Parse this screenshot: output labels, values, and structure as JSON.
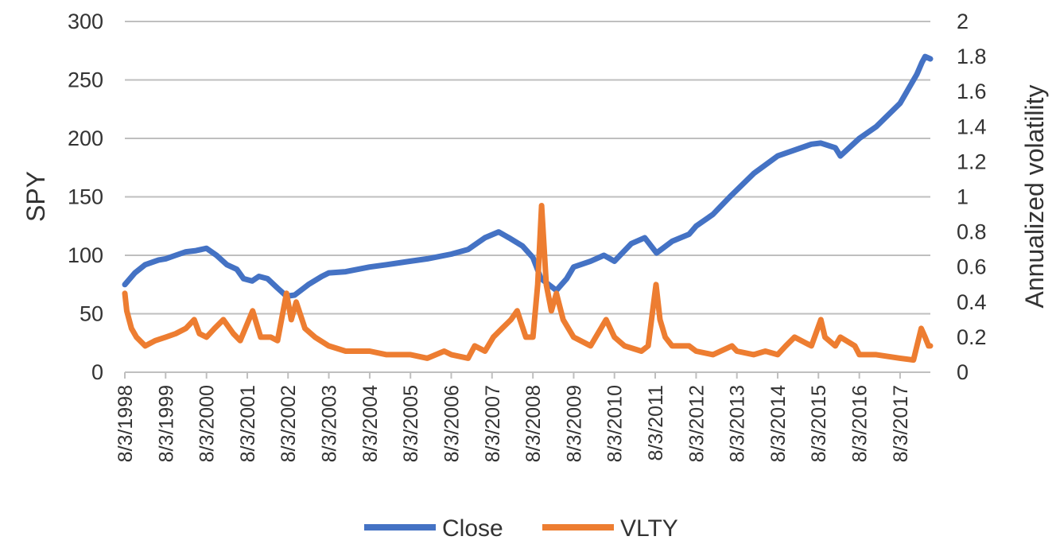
{
  "chart_data": {
    "type": "line",
    "title": "",
    "xlabel": "",
    "ylabel": "SPY",
    "y2label": "Annualized volatility",
    "ylim": [
      0,
      300
    ],
    "y2lim": [
      0,
      2
    ],
    "yticks": [
      "0",
      "50",
      "100",
      "150",
      "200",
      "250",
      "300"
    ],
    "y2ticks": [
      "0",
      "0.2",
      "0.4",
      "0.6",
      "0.8",
      "1",
      "1.2",
      "1.4",
      "1.6",
      "1.8",
      "2"
    ],
    "xlim": [
      "8/3/1998",
      "5/1/2018"
    ],
    "xticks": [
      "8/3/1998",
      "8/3/1999",
      "8/3/2000",
      "8/3/2001",
      "8/3/2002",
      "8/3/2003",
      "8/3/2004",
      "8/3/2005",
      "8/3/2006",
      "8/3/2007",
      "8/3/2008",
      "8/3/2009",
      "8/3/2010",
      "8/3/2011",
      "8/3/2012",
      "8/3/2013",
      "8/3/2014",
      "8/3/2015",
      "8/3/2016",
      "8/3/2017"
    ],
    "grid": true,
    "legend": "bottom",
    "colors": {
      "Close": "#4472C4",
      "VLTY": "#ED7D31",
      "grid": "#bfbfbf"
    },
    "series": [
      {
        "name": "Close",
        "axis": "left",
        "x": [
          "8/3/1998",
          "11/1/1998",
          "2/1/1999",
          "6/1/1999",
          "8/3/1999",
          "11/1/1999",
          "2/1/2000",
          "5/1/2000",
          "8/3/2000",
          "11/1/2000",
          "2/1/2001",
          "5/1/2001",
          "7/1/2001",
          "9/15/2001",
          "11/15/2001",
          "2/1/2002",
          "5/1/2002",
          "7/20/2002",
          "10/1/2002",
          "2/1/2003",
          "6/1/2003",
          "8/3/2003",
          "1/1/2004",
          "8/3/2004",
          "1/1/2005",
          "8/3/2005",
          "1/1/2006",
          "8/3/2006",
          "1/1/2007",
          "6/1/2007",
          "10/1/2007",
          "1/1/2008",
          "5/1/2008",
          "8/3/2008",
          "10/15/2008",
          "3/1/2009",
          "6/1/2009",
          "8/3/2009",
          "1/1/2010",
          "5/1/2010",
          "8/3/2010",
          "1/1/2011",
          "5/1/2011",
          "8/15/2011",
          "1/1/2012",
          "6/1/2012",
          "8/3/2012",
          "1/1/2013",
          "6/1/2013",
          "1/1/2014",
          "8/3/2014",
          "1/1/2015",
          "6/1/2015",
          "8/25/2015",
          "1/1/2016",
          "2/15/2016",
          "8/3/2016",
          "1/1/2017",
          "8/3/2017",
          "1/1/2018",
          "2/15/2018",
          "3/15/2018",
          "5/1/2018"
        ],
        "values": [
          75,
          85,
          92,
          96,
          97,
          100,
          103,
          104,
          106,
          100,
          92,
          88,
          80,
          78,
          82,
          80,
          72,
          65,
          66,
          75,
          82,
          85,
          86,
          90,
          92,
          95,
          97,
          101,
          105,
          115,
          120,
          115,
          108,
          98,
          80,
          70,
          80,
          90,
          95,
          100,
          95,
          110,
          115,
          102,
          112,
          118,
          125,
          135,
          150,
          170,
          185,
          190,
          195,
          196,
          192,
          185,
          200,
          210,
          230,
          255,
          265,
          270,
          268
        ]
      },
      {
        "name": "VLTY",
        "axis": "right",
        "x": [
          "8/3/1998",
          "8/20/1998",
          "10/1/1998",
          "11/15/1998",
          "2/1/1999",
          "5/1/1999",
          "8/3/1999",
          "11/1/1999",
          "2/1/2000",
          "4/15/2000",
          "6/1/2000",
          "8/3/2000",
          "10/15/2000",
          "1/1/2001",
          "4/1/2001",
          "6/1/2001",
          "9/20/2001",
          "12/1/2001",
          "3/1/2002",
          "5/1/2002",
          "7/20/2002",
          "9/1/2002",
          "10/15/2002",
          "1/1/2003",
          "4/1/2003",
          "8/3/2003",
          "1/1/2004",
          "8/3/2004",
          "1/1/2005",
          "8/3/2005",
          "1/1/2006",
          "6/1/2006",
          "8/3/2006",
          "1/1/2007",
          "3/1/2007",
          "6/1/2007",
          "8/15/2007",
          "11/1/2007",
          "1/20/2008",
          "3/15/2008",
          "6/1/2008",
          "8/3/2008",
          "9/15/2008",
          "10/20/2008",
          "12/1/2008",
          "1/15/2009",
          "3/1/2009",
          "5/1/2009",
          "8/3/2009",
          "1/1/2010",
          "5/20/2010",
          "8/3/2010",
          "11/1/2010",
          "4/1/2011",
          "6/1/2011",
          "8/10/2011",
          "9/15/2011",
          "11/1/2011",
          "1/1/2012",
          "6/1/2012",
          "8/3/2012",
          "1/1/2013",
          "6/20/2013",
          "8/3/2013",
          "1/1/2014",
          "4/15/2014",
          "8/3/2014",
          "10/15/2014",
          "1/1/2015",
          "6/1/2015",
          "8/25/2015",
          "10/1/2015",
          "1/1/2016",
          "2/15/2016",
          "6/24/2016",
          "8/3/2016",
          "1/1/2017",
          "8/3/2017",
          "12/1/2017",
          "2/8/2018",
          "3/15/2018",
          "4/15/2018",
          "5/1/2018"
        ],
        "values": [
          0.45,
          0.35,
          0.25,
          0.2,
          0.15,
          0.18,
          0.2,
          0.22,
          0.25,
          0.3,
          0.22,
          0.2,
          0.25,
          0.3,
          0.22,
          0.18,
          0.35,
          0.2,
          0.2,
          0.18,
          0.45,
          0.3,
          0.4,
          0.25,
          0.2,
          0.15,
          0.12,
          0.12,
          0.1,
          0.1,
          0.08,
          0.12,
          0.1,
          0.08,
          0.15,
          0.12,
          0.2,
          0.25,
          0.3,
          0.35,
          0.2,
          0.2,
          0.5,
          0.95,
          0.5,
          0.35,
          0.45,
          0.3,
          0.2,
          0.15,
          0.3,
          0.2,
          0.15,
          0.12,
          0.15,
          0.5,
          0.3,
          0.2,
          0.15,
          0.15,
          0.12,
          0.1,
          0.15,
          0.12,
          0.1,
          0.12,
          0.1,
          0.15,
          0.2,
          0.15,
          0.3,
          0.2,
          0.15,
          0.2,
          0.15,
          0.1,
          0.1,
          0.08,
          0.07,
          0.25,
          0.2,
          0.15,
          0.15
        ]
      }
    ]
  }
}
